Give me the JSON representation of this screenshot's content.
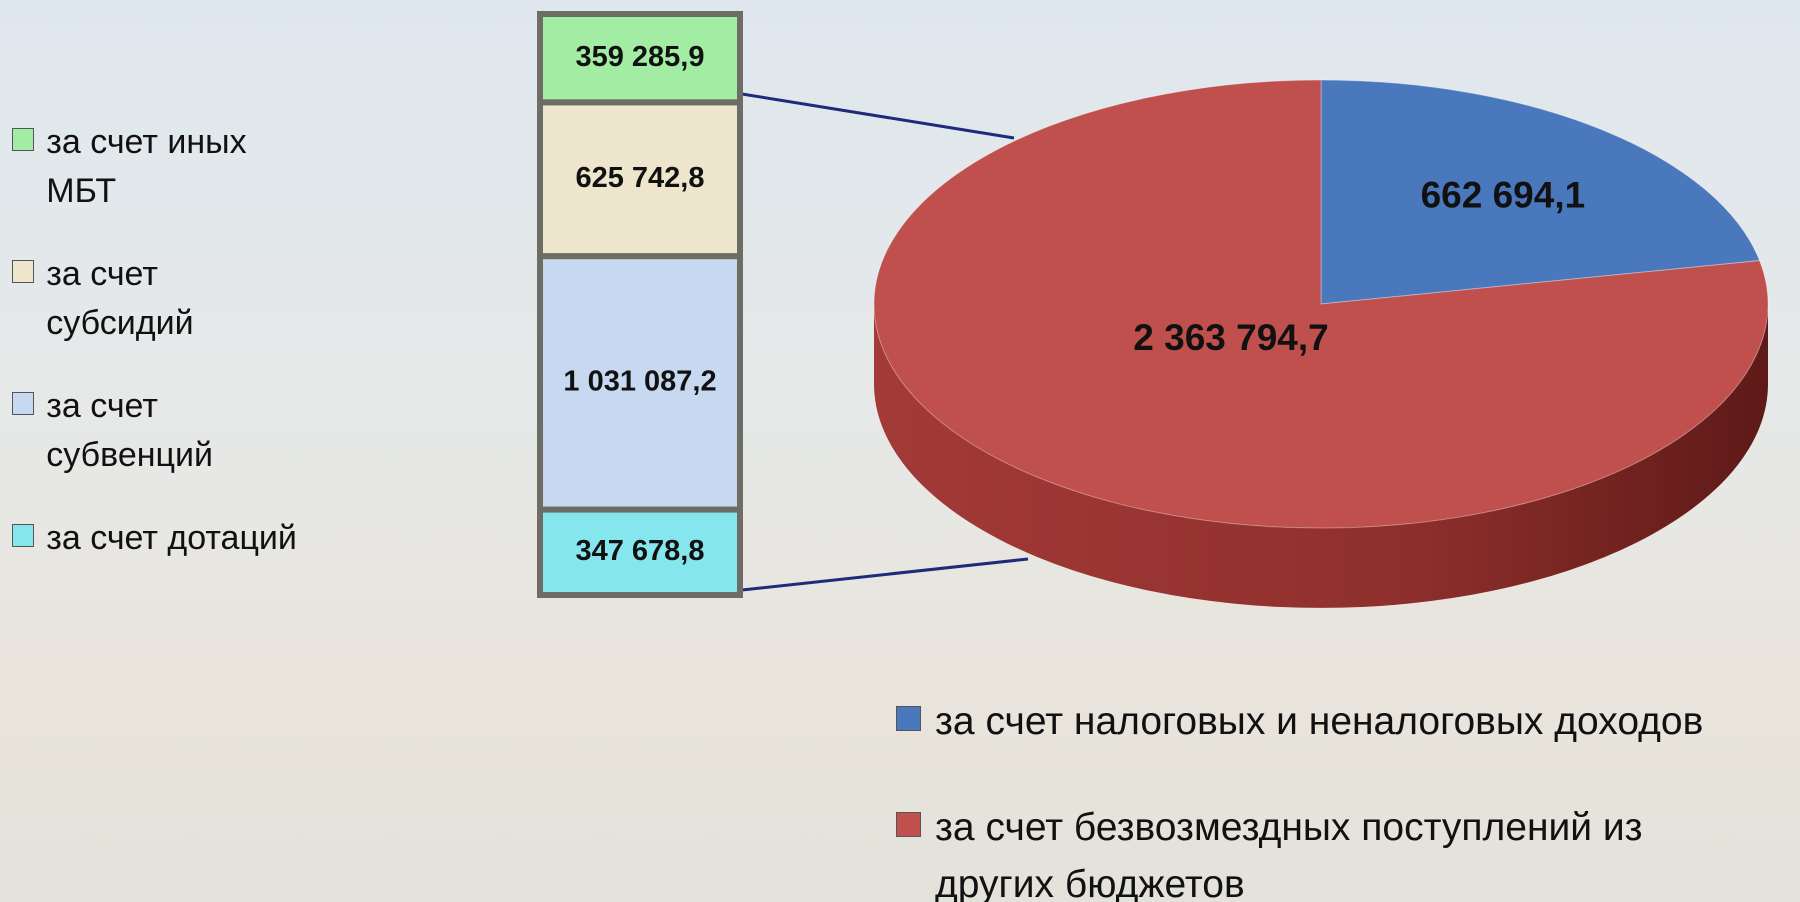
{
  "chart_data": [
    {
      "type": "pie",
      "categories": [
        "за счет налоговых и неналоговых доходов",
        "за счет безвозмездных поступлений из других бюджетов"
      ],
      "values": [
        662694.1,
        2363794.7
      ],
      "value_labels": [
        "662 694,1",
        "2 363 794,7"
      ],
      "colors": [
        "#4a78bd",
        "#c0504d"
      ]
    },
    {
      "type": "bar",
      "stacked": true,
      "series": [
        {
          "name": "за счет дотаций",
          "color": "#86e6ee",
          "values": [
            347678.8
          ],
          "value_labels": [
            "347 678,8"
          ]
        },
        {
          "name": "за счет субвенций",
          "color": "#c6d9f1",
          "values": [
            1031087.2
          ],
          "value_labels": [
            "1 031 087,2"
          ]
        },
        {
          "name": "за счет субсидий",
          "color": "#ede6cc",
          "values": [
            625742.8
          ],
          "value_labels": [
            "625 742,8"
          ]
        },
        {
          "name": "за счет иных МБТ",
          "color": "#a3eca3",
          "values": [
            359285.9
          ],
          "value_labels": [
            "359 285,9"
          ]
        }
      ]
    }
  ]
}
